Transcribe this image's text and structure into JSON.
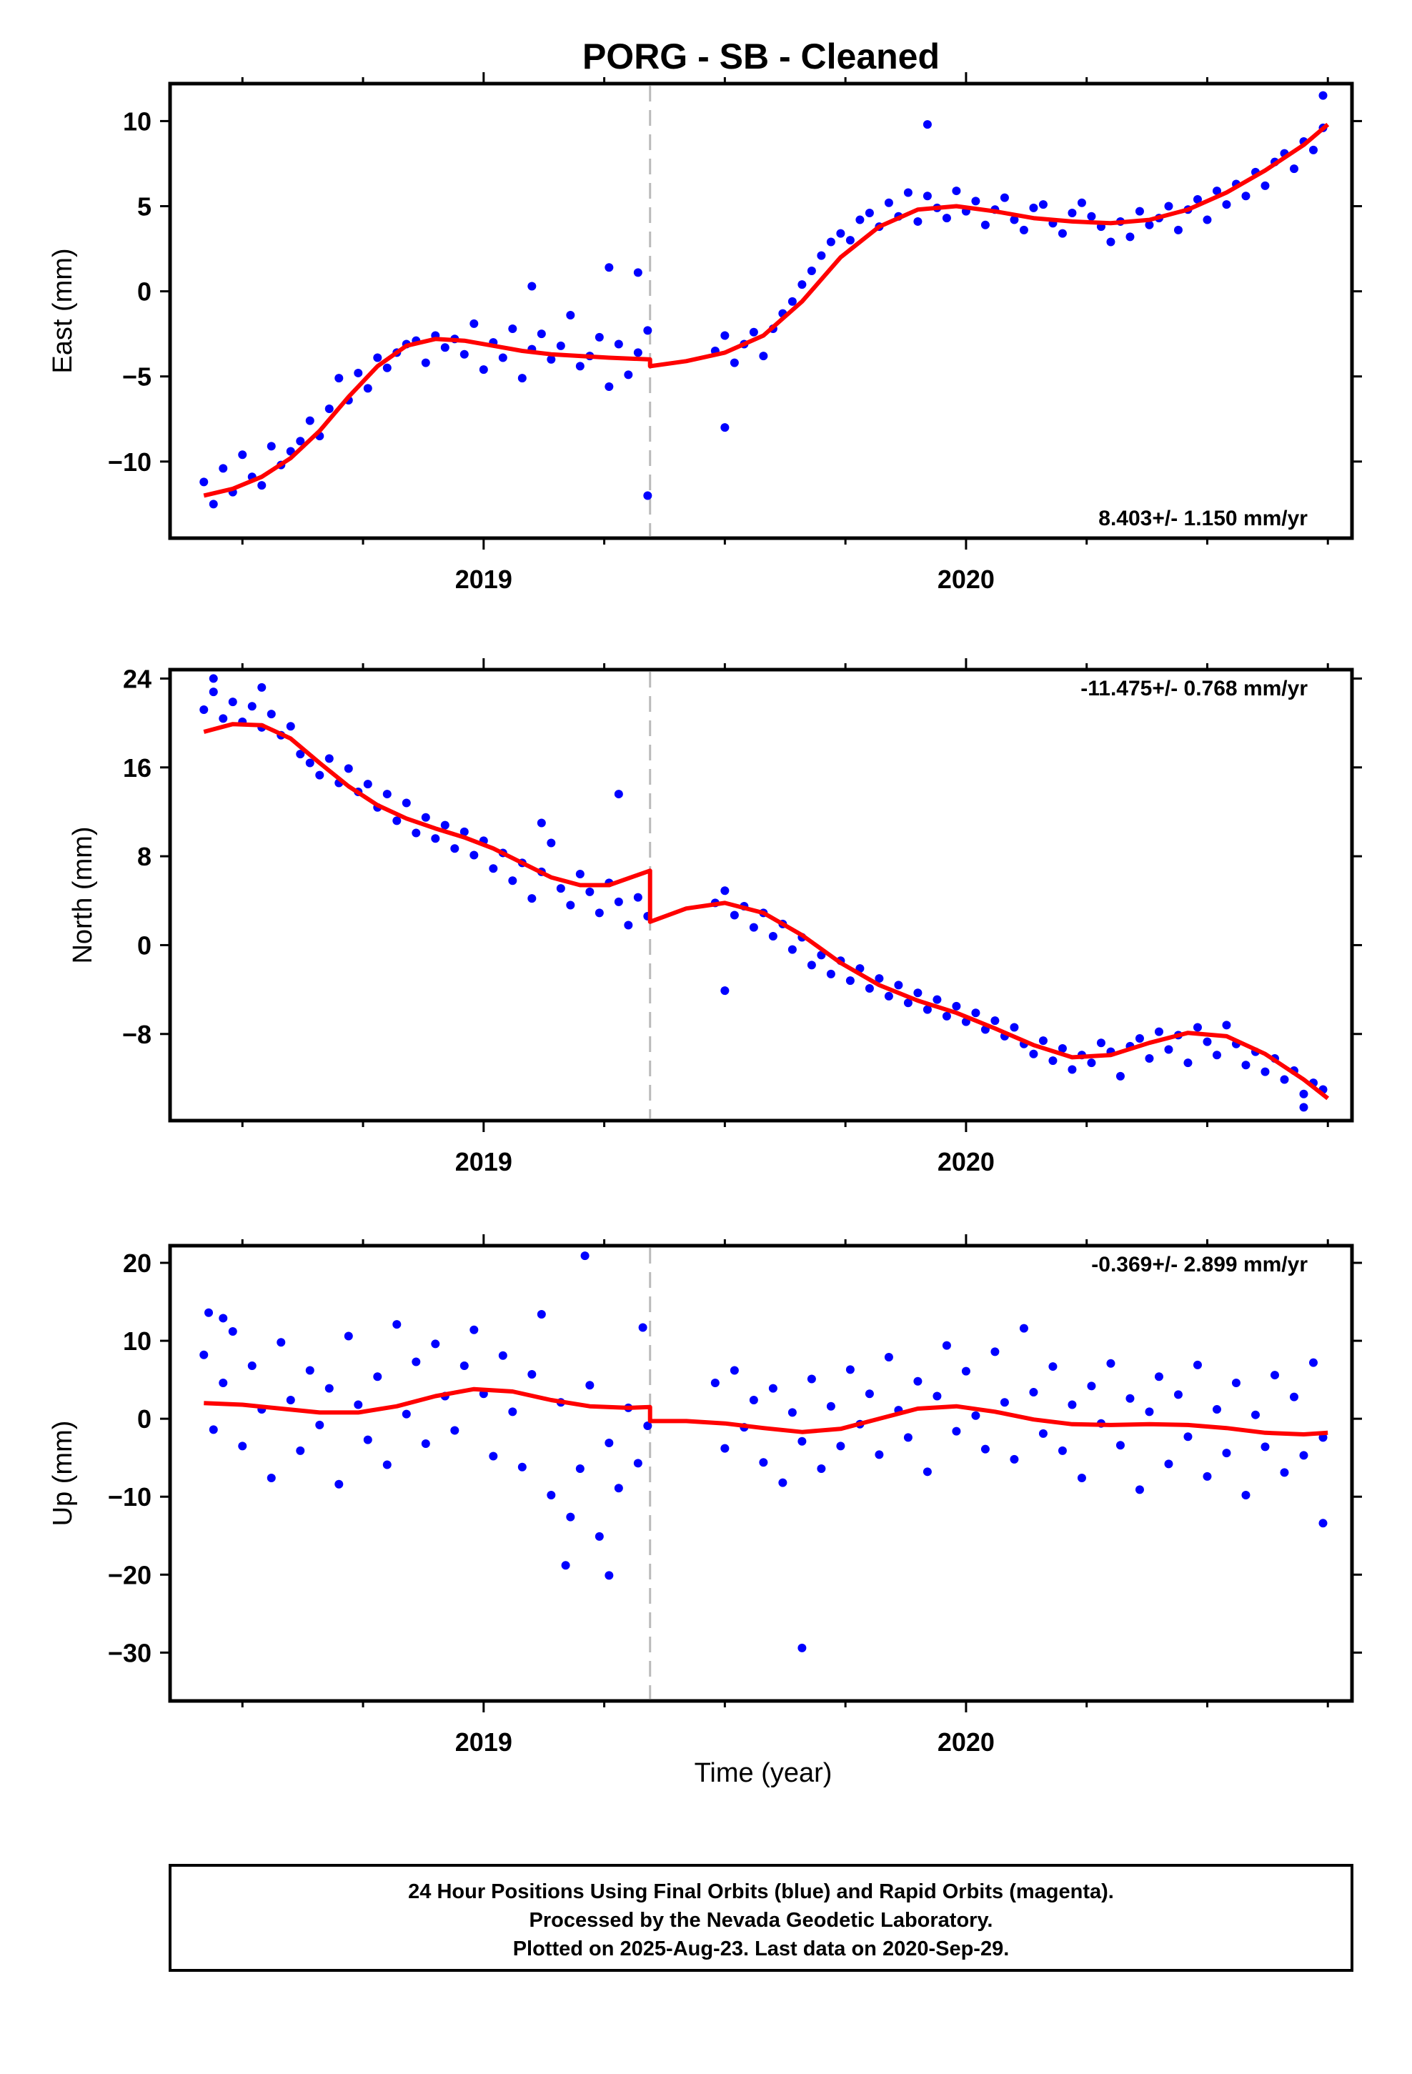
{
  "title": "PORG  - SB - Cleaned",
  "xlabel": "Time (year)",
  "footer": {
    "line1": "24 Hour Positions Using Final Orbits (blue) and Rapid Orbits (magenta).",
    "line2": "Processed by the Nevada Geodetic Laboratory.",
    "line3": "Plotted on 2025-Aug-23. Last data on 2020-Sep-29."
  },
  "colors": {
    "points": "#0000ff",
    "model": "#ff0000",
    "step_line": "#bbbbbb",
    "frame": "#000000"
  },
  "chart_data": [
    {
      "type": "scatter",
      "name": "east",
      "ylabel": "East (mm)",
      "rate": "8.403+/- 1.150 mm/yr",
      "rate_position": "bottom-right",
      "xlim": [
        2018.35,
        2020.8
      ],
      "ylim": [
        -14.5,
        12.2
      ],
      "x_ticks": [
        {
          "value": 2019.0,
          "label": "2019"
        },
        {
          "value": 2020.0,
          "label": "2020"
        }
      ],
      "y_ticks": [
        -10,
        -5,
        0,
        5,
        10
      ],
      "y_tick_labels": [
        "−10",
        "−5",
        "0",
        "5",
        "10"
      ],
      "step_epoch": 2019.345,
      "scatter": {
        "x": [
          2018.42,
          2018.44,
          2018.46,
          2018.48,
          2018.5,
          2018.52,
          2018.54,
          2018.56,
          2018.58,
          2018.6,
          2018.62,
          2018.64,
          2018.66,
          2018.68,
          2018.7,
          2018.72,
          2018.74,
          2018.76,
          2018.78,
          2018.8,
          2018.82,
          2018.84,
          2018.86,
          2018.88,
          2018.9,
          2018.92,
          2018.94,
          2018.96,
          2018.98,
          2019.0,
          2019.02,
          2019.04,
          2019.06,
          2019.08,
          2019.1,
          2019.12,
          2019.14,
          2019.16,
          2019.18,
          2019.2,
          2019.22,
          2019.24,
          2019.26,
          2019.28,
          2019.3,
          2019.32,
          2019.34,
          2019.48,
          2019.5,
          2019.52,
          2019.54,
          2019.56,
          2019.58,
          2019.6,
          2019.62,
          2019.64,
          2019.66,
          2019.68,
          2019.7,
          2019.72,
          2019.74,
          2019.76,
          2019.78,
          2019.8,
          2019.82,
          2019.84,
          2019.86,
          2019.88,
          2019.9,
          2019.92,
          2019.94,
          2019.96,
          2019.98,
          2020.0,
          2020.02,
          2020.04,
          2020.06,
          2020.08,
          2020.1,
          2020.12,
          2020.14,
          2020.16,
          2020.18,
          2020.2,
          2020.22,
          2020.24,
          2020.26,
          2020.28,
          2020.3,
          2020.32,
          2020.34,
          2020.36,
          2020.38,
          2020.4,
          2020.42,
          2020.44,
          2020.46,
          2020.48,
          2020.5,
          2020.52,
          2020.54,
          2020.56,
          2020.58,
          2020.6,
          2020.62,
          2020.64,
          2020.66,
          2020.68,
          2020.7,
          2020.72,
          2020.74,
          2019.1,
          2019.26,
          2019.32,
          2019.34,
          2019.5,
          2019.92,
          2020.74
        ],
        "y": [
          -11.2,
          -12.5,
          -10.4,
          -11.8,
          -9.6,
          -10.9,
          -11.4,
          -9.1,
          -10.2,
          -9.4,
          -8.8,
          -7.6,
          -8.5,
          -6.9,
          -5.1,
          -6.4,
          -4.8,
          -5.7,
          -3.9,
          -4.5,
          -3.6,
          -3.1,
          -2.9,
          -4.2,
          -2.6,
          -3.3,
          -2.8,
          -3.7,
          -1.9,
          -4.6,
          -3.0,
          -3.9,
          -2.2,
          -5.1,
          -3.4,
          -2.5,
          -4.0,
          -3.2,
          -1.4,
          -4.4,
          -3.8,
          -2.7,
          -5.6,
          -3.1,
          -4.9,
          -3.6,
          -2.3,
          -3.5,
          -2.6,
          -4.2,
          -3.1,
          -2.4,
          -3.8,
          -2.2,
          -1.3,
          -0.6,
          0.4,
          1.2,
          2.1,
          2.9,
          3.4,
          3.0,
          4.2,
          4.6,
          3.8,
          5.2,
          4.4,
          5.8,
          4.1,
          5.6,
          4.9,
          4.3,
          5.9,
          4.7,
          5.3,
          3.9,
          4.8,
          5.5,
          4.2,
          3.6,
          4.9,
          5.1,
          4.0,
          3.4,
          4.6,
          5.2,
          4.4,
          3.8,
          2.9,
          4.1,
          3.2,
          4.7,
          3.9,
          4.3,
          5.0,
          3.6,
          4.8,
          5.4,
          4.2,
          5.9,
          5.1,
          6.3,
          5.6,
          7.0,
          6.2,
          7.6,
          8.1,
          7.2,
          8.8,
          8.3,
          9.6,
          0.3,
          1.4,
          1.1,
          -12.0,
          -8.0,
          9.8,
          11.5
        ]
      },
      "model": {
        "x": [
          2018.42,
          2018.48,
          2018.54,
          2018.6,
          2018.66,
          2018.72,
          2018.78,
          2018.84,
          2018.9,
          2018.96,
          2019.02,
          2019.08,
          2019.14,
          2019.2,
          2019.26,
          2019.345,
          2019.345,
          2019.42,
          2019.5,
          2019.58,
          2019.66,
          2019.74,
          2019.82,
          2019.9,
          2019.98,
          2020.06,
          2020.14,
          2020.22,
          2020.3,
          2020.38,
          2020.46,
          2020.54,
          2020.62,
          2020.7,
          2020.75
        ],
        "y": [
          -12.0,
          -11.6,
          -10.9,
          -9.8,
          -8.2,
          -6.2,
          -4.4,
          -3.2,
          -2.8,
          -2.9,
          -3.2,
          -3.5,
          -3.7,
          -3.8,
          -3.9,
          -4.0,
          -4.4,
          -4.1,
          -3.6,
          -2.6,
          -0.6,
          2.0,
          3.8,
          4.8,
          5.0,
          4.7,
          4.3,
          4.1,
          4.0,
          4.2,
          4.8,
          5.8,
          7.1,
          8.6,
          9.8
        ]
      }
    },
    {
      "type": "scatter",
      "name": "north",
      "ylabel": "North (mm)",
      "rate": "-11.475+/- 0.768 mm/yr",
      "rate_position": "top-right",
      "xlim": [
        2018.35,
        2020.8
      ],
      "ylim": [
        -15.8,
        24.8
      ],
      "x_ticks": [
        {
          "value": 2019.0,
          "label": "2019"
        },
        {
          "value": 2020.0,
          "label": "2020"
        }
      ],
      "y_ticks": [
        -8,
        0,
        8,
        16,
        24
      ],
      "y_tick_labels": [
        "−8",
        "0",
        "8",
        "16",
        "24"
      ],
      "step_epoch": 2019.345,
      "scatter": {
        "x": [
          2018.42,
          2018.44,
          2018.46,
          2018.48,
          2018.5,
          2018.52,
          2018.54,
          2018.56,
          2018.58,
          2018.6,
          2018.62,
          2018.64,
          2018.66,
          2018.68,
          2018.7,
          2018.72,
          2018.74,
          2018.76,
          2018.78,
          2018.8,
          2018.82,
          2018.84,
          2018.86,
          2018.88,
          2018.9,
          2018.92,
          2018.94,
          2018.96,
          2018.98,
          2019.0,
          2019.02,
          2019.04,
          2019.06,
          2019.08,
          2019.1,
          2019.12,
          2019.14,
          2019.16,
          2019.18,
          2019.2,
          2019.22,
          2019.24,
          2019.26,
          2019.28,
          2019.3,
          2019.32,
          2019.34,
          2019.48,
          2019.5,
          2019.52,
          2019.54,
          2019.56,
          2019.58,
          2019.6,
          2019.62,
          2019.64,
          2019.66,
          2019.68,
          2019.7,
          2019.72,
          2019.74,
          2019.76,
          2019.78,
          2019.8,
          2019.82,
          2019.84,
          2019.86,
          2019.88,
          2019.9,
          2019.92,
          2019.94,
          2019.96,
          2019.98,
          2020.0,
          2020.02,
          2020.04,
          2020.06,
          2020.08,
          2020.1,
          2020.12,
          2020.14,
          2020.16,
          2020.18,
          2020.2,
          2020.22,
          2020.24,
          2020.26,
          2020.28,
          2020.3,
          2020.32,
          2020.34,
          2020.36,
          2020.38,
          2020.4,
          2020.42,
          2020.44,
          2020.46,
          2020.48,
          2020.5,
          2020.52,
          2020.54,
          2020.56,
          2020.58,
          2020.6,
          2020.62,
          2020.64,
          2020.66,
          2020.68,
          2020.7,
          2020.72,
          2020.74,
          2018.44,
          2018.54,
          2019.12,
          2019.28,
          2019.5,
          2020.7
        ],
        "y": [
          21.2,
          22.8,
          20.4,
          21.9,
          20.1,
          21.5,
          19.6,
          20.8,
          18.9,
          19.7,
          17.2,
          16.4,
          15.3,
          16.8,
          14.6,
          15.9,
          13.8,
          14.5,
          12.4,
          13.6,
          11.2,
          12.8,
          10.1,
          11.5,
          9.6,
          10.8,
          8.7,
          10.2,
          8.1,
          9.4,
          6.9,
          8.3,
          5.8,
          7.4,
          4.2,
          6.6,
          9.2,
          5.1,
          3.6,
          6.4,
          4.8,
          2.9,
          5.6,
          3.9,
          1.8,
          4.3,
          2.6,
          3.8,
          4.9,
          2.7,
          3.5,
          1.6,
          2.9,
          0.8,
          1.9,
          -0.4,
          0.7,
          -1.8,
          -0.9,
          -2.6,
          -1.4,
          -3.2,
          -2.1,
          -3.9,
          -3.0,
          -4.6,
          -3.6,
          -5.2,
          -4.3,
          -5.8,
          -4.9,
          -6.4,
          -5.5,
          -6.9,
          -6.1,
          -7.6,
          -6.8,
          -8.2,
          -7.4,
          -8.9,
          -9.8,
          -8.6,
          -10.4,
          -9.3,
          -11.2,
          -9.9,
          -10.6,
          -8.8,
          -9.6,
          -11.8,
          -9.1,
          -8.4,
          -10.2,
          -7.8,
          -9.4,
          -8.1,
          -10.6,
          -7.4,
          -8.7,
          -9.9,
          -7.2,
          -8.9,
          -10.8,
          -9.6,
          -11.4,
          -10.2,
          -12.1,
          -11.3,
          -13.4,
          -12.4,
          -13.0,
          24.0,
          23.2,
          11.0,
          13.6,
          -4.1,
          -14.6
        ]
      },
      "model": {
        "x": [
          2018.42,
          2018.48,
          2018.54,
          2018.6,
          2018.66,
          2018.72,
          2018.78,
          2018.84,
          2018.9,
          2018.96,
          2019.02,
          2019.08,
          2019.14,
          2019.2,
          2019.26,
          2019.345,
          2019.345,
          2019.42,
          2019.5,
          2019.58,
          2019.66,
          2019.74,
          2019.82,
          2019.9,
          2019.98,
          2020.06,
          2020.14,
          2020.22,
          2020.3,
          2020.38,
          2020.46,
          2020.54,
          2020.62,
          2020.7,
          2020.75
        ],
        "y": [
          19.2,
          19.9,
          19.8,
          18.6,
          16.4,
          14.3,
          12.6,
          11.4,
          10.5,
          9.7,
          8.7,
          7.4,
          6.1,
          5.4,
          5.4,
          6.7,
          2.1,
          3.3,
          3.8,
          2.9,
          0.9,
          -1.6,
          -3.6,
          -5.0,
          -6.1,
          -7.5,
          -9.0,
          -10.1,
          -9.9,
          -8.8,
          -7.9,
          -8.2,
          -9.8,
          -12.1,
          -13.8
        ]
      }
    },
    {
      "type": "scatter",
      "name": "up",
      "ylabel": "Up (mm)",
      "rate": "-0.369+/- 2.899 mm/yr",
      "rate_position": "top-right",
      "xlim": [
        2018.35,
        2020.8
      ],
      "ylim": [
        -36.2,
        22.2
      ],
      "x_ticks": [
        {
          "value": 2019.0,
          "label": "2019"
        },
        {
          "value": 2020.0,
          "label": "2020"
        }
      ],
      "y_ticks": [
        -30,
        -20,
        -10,
        0,
        10,
        20
      ],
      "y_tick_labels": [
        "−30",
        "−20",
        "−10",
        "0",
        "10",
        "20"
      ],
      "step_epoch": 2019.345,
      "scatter": {
        "x": [
          2018.42,
          2018.44,
          2018.46,
          2018.48,
          2018.5,
          2018.52,
          2018.54,
          2018.56,
          2018.58,
          2018.6,
          2018.62,
          2018.64,
          2018.66,
          2018.68,
          2018.7,
          2018.72,
          2018.74,
          2018.76,
          2018.78,
          2018.8,
          2018.82,
          2018.84,
          2018.86,
          2018.88,
          2018.9,
          2018.92,
          2018.94,
          2018.96,
          2018.98,
          2019.0,
          2019.02,
          2019.04,
          2019.06,
          2019.08,
          2019.1,
          2019.12,
          2019.14,
          2019.16,
          2019.18,
          2019.2,
          2019.22,
          2019.24,
          2019.26,
          2019.28,
          2019.3,
          2019.32,
          2019.34,
          2019.48,
          2019.5,
          2019.52,
          2019.54,
          2019.56,
          2019.58,
          2019.6,
          2019.62,
          2019.64,
          2019.66,
          2019.68,
          2019.7,
          2019.72,
          2019.74,
          2019.76,
          2019.78,
          2019.8,
          2019.82,
          2019.84,
          2019.86,
          2019.88,
          2019.9,
          2019.92,
          2019.94,
          2019.96,
          2019.98,
          2020.0,
          2020.02,
          2020.04,
          2020.06,
          2020.08,
          2020.1,
          2020.12,
          2020.14,
          2020.16,
          2020.18,
          2020.2,
          2020.22,
          2020.24,
          2020.26,
          2020.28,
          2020.3,
          2020.32,
          2020.34,
          2020.36,
          2020.38,
          2020.4,
          2020.42,
          2020.44,
          2020.46,
          2020.48,
          2020.5,
          2020.52,
          2020.54,
          2020.56,
          2020.58,
          2020.6,
          2020.62,
          2020.64,
          2020.66,
          2020.68,
          2020.7,
          2020.72,
          2020.74,
          2018.43,
          2018.46,
          2019.17,
          2019.21,
          2019.26,
          2019.33,
          2019.66,
          2020.74
        ],
        "y": [
          8.2,
          -1.4,
          4.6,
          11.2,
          -3.5,
          6.8,
          1.2,
          -7.6,
          9.8,
          2.4,
          -4.1,
          6.2,
          -0.8,
          3.9,
          -8.4,
          10.6,
          1.8,
          -2.7,
          5.4,
          -5.9,
          12.1,
          0.6,
          7.3,
          -3.2,
          9.6,
          2.9,
          -1.5,
          6.8,
          11.4,
          3.2,
          -4.8,
          8.1,
          0.9,
          -6.2,
          5.7,
          13.4,
          -9.8,
          2.1,
          -12.6,
          -6.4,
          4.3,
          -15.1,
          -3.1,
          -8.9,
          1.4,
          -5.7,
          -0.9,
          4.6,
          -3.8,
          6.2,
          -1.1,
          2.4,
          -5.6,
          3.9,
          -8.2,
          0.8,
          -2.9,
          5.1,
          -6.4,
          1.6,
          -3.5,
          6.3,
          -0.7,
          3.2,
          -4.6,
          7.9,
          1.1,
          -2.4,
          4.8,
          -6.8,
          2.9,
          9.4,
          -1.6,
          6.1,
          0.4,
          -3.9,
          8.6,
          2.1,
          -5.2,
          11.6,
          3.4,
          -1.9,
          6.7,
          -4.1,
          1.8,
          -7.6,
          4.2,
          -0.6,
          7.1,
          -3.4,
          2.6,
          -9.1,
          0.9,
          5.4,
          -5.8,
          3.1,
          -2.3,
          6.9,
          -7.4,
          1.2,
          -4.4,
          4.6,
          -9.8,
          0.5,
          -3.6,
          5.6,
          -6.9,
          2.8,
          -4.7,
          7.2,
          -2.4,
          13.6,
          12.9,
          -18.8,
          20.9,
          -20.1,
          11.7,
          -29.4,
          -13.4
        ]
      },
      "model": {
        "x": [
          2018.42,
          2018.5,
          2018.58,
          2018.66,
          2018.74,
          2018.82,
          2018.9,
          2018.98,
          2019.06,
          2019.14,
          2019.22,
          2019.3,
          2019.345,
          2019.345,
          2019.42,
          2019.5,
          2019.58,
          2019.66,
          2019.74,
          2019.82,
          2019.9,
          2019.98,
          2020.06,
          2020.14,
          2020.22,
          2020.3,
          2020.38,
          2020.46,
          2020.54,
          2020.62,
          2020.7,
          2020.75
        ],
        "y": [
          2.0,
          1.8,
          1.3,
          0.8,
          0.8,
          1.6,
          2.9,
          3.8,
          3.5,
          2.4,
          1.6,
          1.4,
          1.5,
          -0.3,
          -0.3,
          -0.6,
          -1.2,
          -1.7,
          -1.3,
          0.0,
          1.3,
          1.6,
          0.9,
          -0.1,
          -0.7,
          -0.8,
          -0.7,
          -0.8,
          -1.2,
          -1.8,
          -2.0,
          -1.8
        ]
      }
    }
  ]
}
